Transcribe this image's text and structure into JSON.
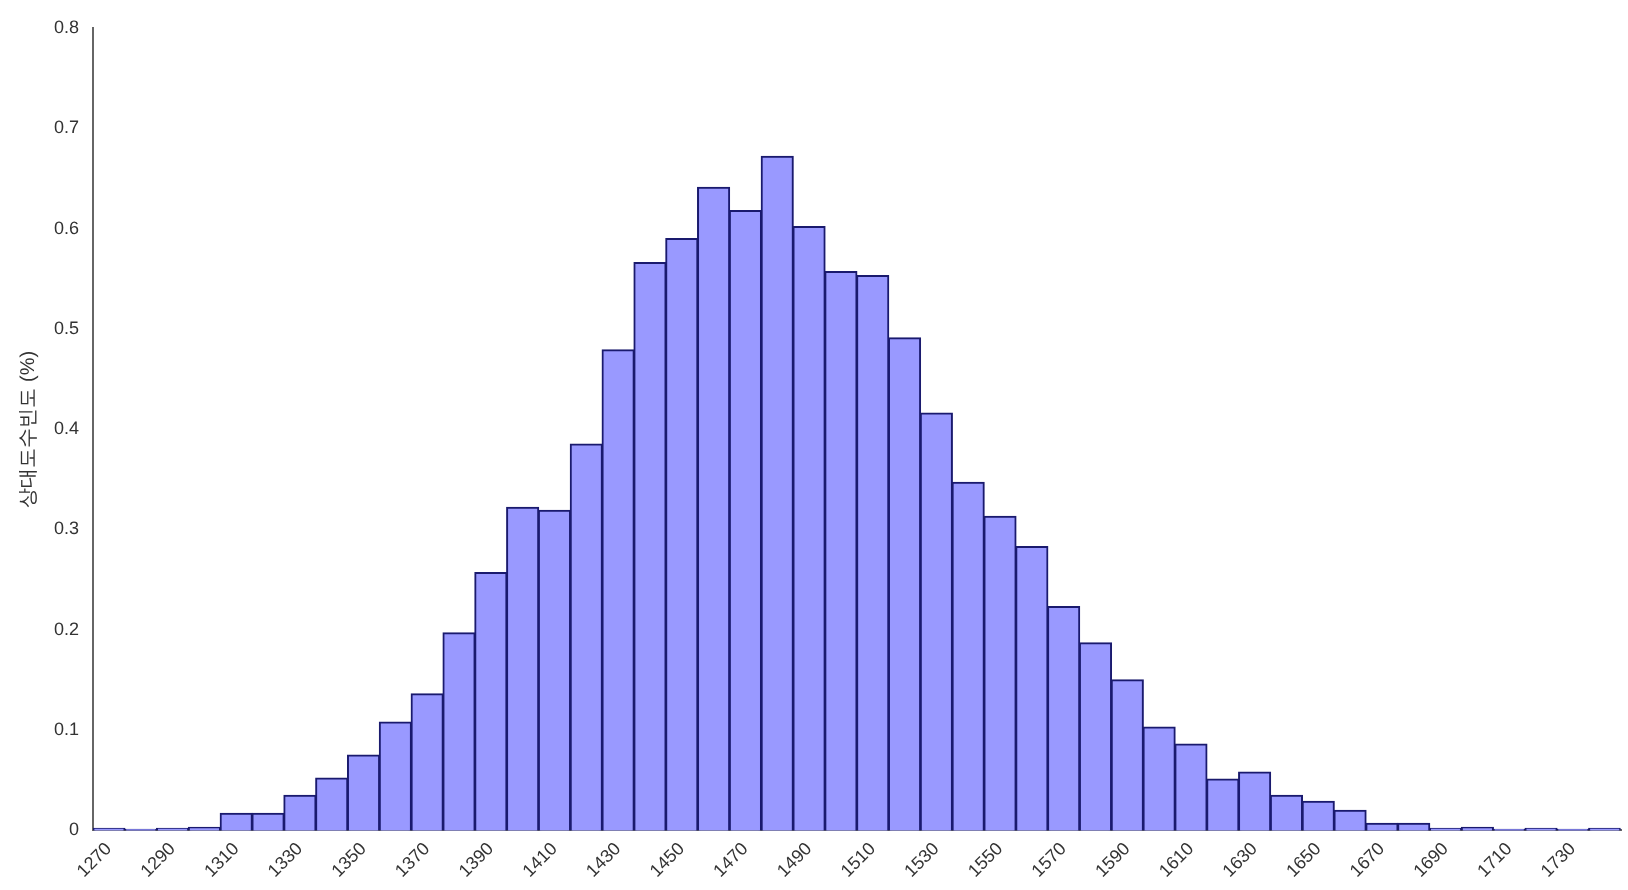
{
  "chart_data": {
    "type": "bar",
    "ylabel": "상대도수빈도 (%)",
    "categories": [
      "1270",
      null,
      "1290",
      null,
      "1310",
      null,
      "1330",
      null,
      "1350",
      null,
      "1370",
      null,
      "1390",
      null,
      "1410",
      null,
      "1430",
      null,
      "1450",
      null,
      "1470",
      null,
      "1490",
      null,
      "1510",
      null,
      "1530",
      null,
      "1550",
      null,
      "1570",
      null,
      "1590",
      null,
      "1610",
      null,
      "1630",
      null,
      "1650",
      null,
      "1670",
      null,
      "1690",
      null,
      "1710",
      null,
      "1730",
      null
    ],
    "values": [
      0.002,
      0.001,
      0.002,
      0.003,
      0.017,
      0.017,
      0.035,
      0.052,
      0.075,
      0.108,
      0.136,
      0.197,
      0.257,
      0.322,
      0.319,
      0.385,
      0.479,
      0.566,
      0.59,
      0.641,
      0.618,
      0.672,
      0.602,
      0.557,
      0.553,
      0.491,
      0.416,
      0.347,
      0.313,
      0.283,
      0.223,
      0.187,
      0.15,
      0.103,
      0.086,
      0.051,
      0.058,
      0.035,
      0.029,
      0.02,
      0.007,
      0.007,
      0.002,
      0.003,
      0.001,
      0.002,
      0.001,
      0.002
    ],
    "color": "#9999ff",
    "ylim": [
      0,
      0.8
    ],
    "yticks": [
      0,
      0.1,
      0.2,
      0.3,
      0.4,
      0.5,
      0.6,
      0.7,
      0.8
    ],
    "grid": false,
    "legend": false
  }
}
